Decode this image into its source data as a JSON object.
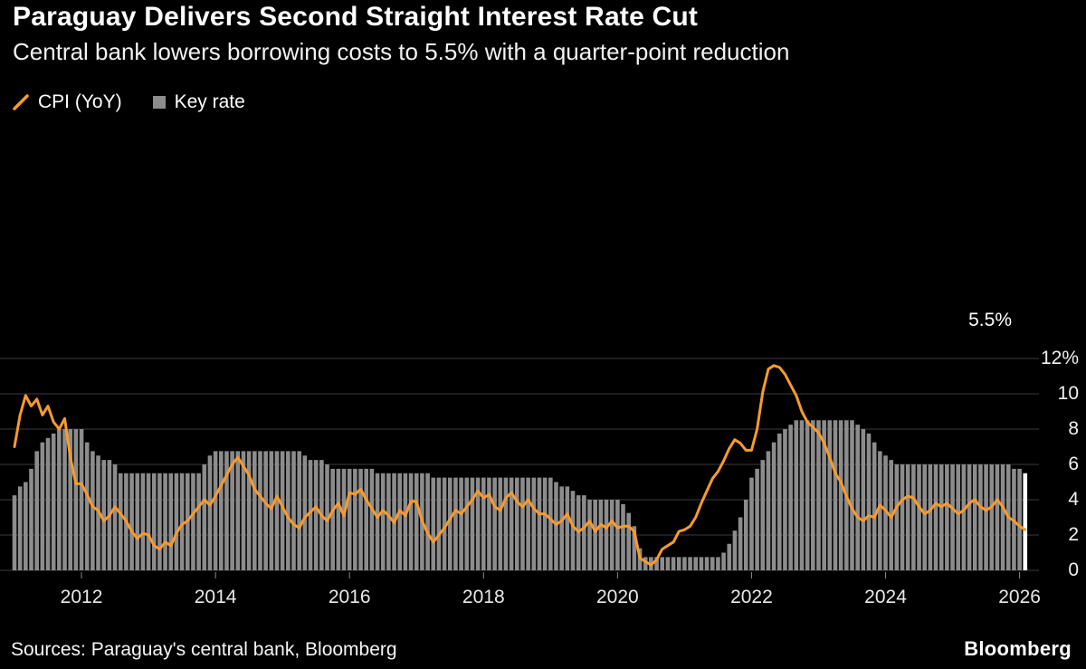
{
  "header": {
    "title": "Paraguay Delivers Second Straight Interest Rate Cut",
    "subtitle": "Central bank lowers borrowing costs to 5.5% with a quarter-point reduction"
  },
  "legend": [
    {
      "label": "CPI (YoY)",
      "swatch": "line",
      "color": "#F79B2E"
    },
    {
      "label": "Key rate",
      "swatch": "square",
      "color": "#8C8C8C"
    }
  ],
  "annotation": {
    "label": "5.5%",
    "marker_color": "#FFFFFF"
  },
  "colors": {
    "background": "#000000",
    "cpi_line": "#F79B2E",
    "key_rate_bar": "#8C8C8C",
    "gridline": "#3D3D3D",
    "highlight": "#FFFFFF"
  },
  "chart_data": {
    "type": "mixed",
    "x_frequency": "monthly",
    "x_start": "2011-01",
    "x_end": "2026-02",
    "x_tick_years": [
      2012,
      2014,
      2016,
      2018,
      2020,
      2022,
      2024,
      2026
    ],
    "x_tick_labels": [
      "2012",
      "2014",
      "2016",
      "2018",
      "2020",
      "2022",
      "2024",
      "2026"
    ],
    "y_ticks": [
      0,
      2,
      4,
      6,
      8,
      10,
      12
    ],
    "y_tick_labels": [
      "0",
      "2",
      "4",
      "6",
      "8",
      "10",
      "12%"
    ],
    "ylim": [
      0,
      12.5
    ],
    "grid": true,
    "legend_position": "top-left",
    "series": [
      {
        "name": "CPI (YoY)",
        "type": "line",
        "color": "#F79B2E",
        "values": [
          7.0,
          8.8,
          9.9,
          9.3,
          9.7,
          8.8,
          9.3,
          8.4,
          8.0,
          8.6,
          6.4,
          4.9,
          4.9,
          4.3,
          3.6,
          3.4,
          2.8,
          3.1,
          3.6,
          3.2,
          2.8,
          2.2,
          1.8,
          2.1,
          2.0,
          1.4,
          1.2,
          1.6,
          1.4,
          2.1,
          2.6,
          2.8,
          3.2,
          3.6,
          4.0,
          3.7,
          4.2,
          4.8,
          5.4,
          6.0,
          6.4,
          5.9,
          5.4,
          4.6,
          4.2,
          3.8,
          3.5,
          4.2,
          3.6,
          3.0,
          2.6,
          2.4,
          3.0,
          3.3,
          3.6,
          3.1,
          2.8,
          3.4,
          3.8,
          3.1,
          4.4,
          4.3,
          4.6,
          4.0,
          3.5,
          3.0,
          3.4,
          3.1,
          2.7,
          3.4,
          3.1,
          3.9,
          3.9,
          2.8,
          2.1,
          1.6,
          2.0,
          2.4,
          2.9,
          3.4,
          3.2,
          3.6,
          4.0,
          4.5,
          4.1,
          4.3,
          3.6,
          3.4,
          4.1,
          4.4,
          3.9,
          3.6,
          4.0,
          3.5,
          3.2,
          3.2,
          2.9,
          2.6,
          2.8,
          3.2,
          2.5,
          2.2,
          2.4,
          2.8,
          2.2,
          2.6,
          2.4,
          2.8,
          2.4,
          2.5,
          2.5,
          2.2,
          0.7,
          0.5,
          0.3,
          0.6,
          1.2,
          1.4,
          1.6,
          2.2,
          2.3,
          2.5,
          3.0,
          3.8,
          4.5,
          5.2,
          5.6,
          6.2,
          6.9,
          7.4,
          7.2,
          6.8,
          6.8,
          8.0,
          10.1,
          11.4,
          11.6,
          11.5,
          11.1,
          10.5,
          9.9,
          9.0,
          8.4,
          8.1,
          7.8,
          7.2,
          6.4,
          5.5,
          5.0,
          4.2,
          3.5,
          3.0,
          2.8,
          3.1,
          3.0,
          3.7,
          3.4,
          3.0,
          3.6,
          4.0,
          4.2,
          4.1,
          3.6,
          3.2,
          3.4,
          3.8,
          3.6,
          3.8,
          3.5,
          3.2,
          3.4,
          3.8,
          4.0,
          3.6,
          3.4,
          3.6,
          4.0,
          3.6,
          3.0,
          2.8,
          2.5,
          2.3
        ]
      },
      {
        "name": "Key rate",
        "type": "bar",
        "color": "#8C8C8C",
        "highlight_last": true,
        "highlight_color": "#FFFFFF",
        "last_value": 5.5,
        "values": [
          4.25,
          4.75,
          5.0,
          5.75,
          6.75,
          7.25,
          7.5,
          7.75,
          8.0,
          8.0,
          8.0,
          8.0,
          8.0,
          7.25,
          6.75,
          6.5,
          6.25,
          6.25,
          6.0,
          5.5,
          5.5,
          5.5,
          5.5,
          5.5,
          5.5,
          5.5,
          5.5,
          5.5,
          5.5,
          5.5,
          5.5,
          5.5,
          5.5,
          5.5,
          6.0,
          6.5,
          6.75,
          6.75,
          6.75,
          6.75,
          6.75,
          6.75,
          6.75,
          6.75,
          6.75,
          6.75,
          6.75,
          6.75,
          6.75,
          6.75,
          6.75,
          6.75,
          6.5,
          6.25,
          6.25,
          6.25,
          6.0,
          5.75,
          5.75,
          5.75,
          5.75,
          5.75,
          5.75,
          5.75,
          5.75,
          5.5,
          5.5,
          5.5,
          5.5,
          5.5,
          5.5,
          5.5,
          5.5,
          5.5,
          5.5,
          5.25,
          5.25,
          5.25,
          5.25,
          5.25,
          5.25,
          5.25,
          5.25,
          5.25,
          5.25,
          5.25,
          5.25,
          5.25,
          5.25,
          5.25,
          5.25,
          5.25,
          5.25,
          5.25,
          5.25,
          5.25,
          5.25,
          5.0,
          4.75,
          4.75,
          4.5,
          4.25,
          4.25,
          4.0,
          4.0,
          4.0,
          4.0,
          4.0,
          4.0,
          3.75,
          3.25,
          2.5,
          1.25,
          0.75,
          0.75,
          0.75,
          0.75,
          0.75,
          0.75,
          0.75,
          0.75,
          0.75,
          0.75,
          0.75,
          0.75,
          0.75,
          0.75,
          1.0,
          1.5,
          2.25,
          3.0,
          4.0,
          5.25,
          5.75,
          6.25,
          6.75,
          7.25,
          7.75,
          8.0,
          8.25,
          8.5,
          8.5,
          8.5,
          8.5,
          8.5,
          8.5,
          8.5,
          8.5,
          8.5,
          8.5,
          8.5,
          8.25,
          8.0,
          7.75,
          7.25,
          6.75,
          6.5,
          6.25,
          6.0,
          6.0,
          6.0,
          6.0,
          6.0,
          6.0,
          6.0,
          6.0,
          6.0,
          6.0,
          6.0,
          6.0,
          6.0,
          6.0,
          6.0,
          6.0,
          6.0,
          6.0,
          6.0,
          6.0,
          6.0,
          5.75,
          5.75,
          5.5
        ]
      }
    ]
  },
  "footer": {
    "sources": "Sources: Paraguay's central bank, Bloomberg",
    "brand": "Bloomberg"
  }
}
